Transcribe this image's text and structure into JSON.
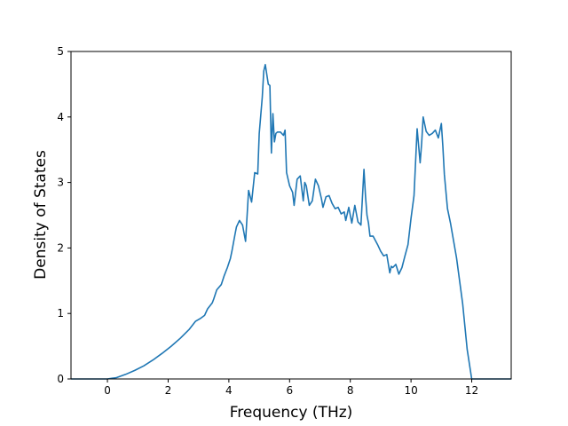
{
  "chart_data": {
    "type": "line",
    "title": "",
    "xlabel": "Frequency (THz)",
    "ylabel": "Density of States",
    "xlim": [
      -1.2,
      13.3
    ],
    "ylim": [
      0,
      5
    ],
    "grid": false,
    "legend": "none",
    "line_color": "#1f77b4",
    "xticks": [
      0,
      2,
      4,
      6,
      8,
      10,
      12
    ],
    "yticks": [
      0,
      1,
      2,
      3,
      4,
      5
    ],
    "xtick_labels": [
      "0",
      "2",
      "4",
      "6",
      "8",
      "10",
      "12"
    ],
    "ytick_labels": [
      "0",
      "1",
      "2",
      "3",
      "4",
      "5"
    ],
    "series": [
      {
        "x": [
          -1.2,
          -0.6,
          0.0,
          0.3,
          0.6,
          0.9,
          1.2,
          1.5,
          1.8,
          2.1,
          2.4,
          2.7,
          2.9,
          3.05,
          3.2,
          3.3,
          3.45,
          3.5,
          3.6,
          3.75,
          3.85,
          3.95,
          4.05,
          4.1,
          4.2,
          4.25,
          4.35,
          4.45,
          4.55,
          4.65,
          4.75,
          4.85,
          4.95,
          5.0,
          5.1,
          5.15,
          5.2,
          5.3,
          5.35,
          5.4,
          5.45,
          5.5,
          5.55,
          5.6,
          5.7,
          5.8,
          5.85,
          5.9,
          6.0,
          6.1,
          6.15,
          6.25,
          6.35,
          6.45,
          6.5,
          6.55,
          6.65,
          6.75,
          6.85,
          6.95,
          7.05,
          7.1,
          7.2,
          7.3,
          7.4,
          7.5,
          7.6,
          7.7,
          7.8,
          7.85,
          7.95,
          8.05,
          8.15,
          8.25,
          8.35,
          8.45,
          8.5,
          8.55,
          8.6,
          8.65,
          8.75,
          8.9,
          9.0,
          9.1,
          9.2,
          9.3,
          9.35,
          9.4,
          9.5,
          9.6,
          9.7,
          9.8,
          9.9,
          10.0,
          10.1,
          10.2,
          10.3,
          10.35,
          10.4,
          10.5,
          10.55,
          10.6,
          10.7,
          10.8,
          10.9,
          11.0,
          11.05,
          11.1,
          11.2,
          11.3,
          11.5,
          11.7,
          11.85,
          12.0,
          12.05,
          12.5,
          13.3
        ],
        "y": [
          0,
          0,
          0,
          0.02,
          0.07,
          0.13,
          0.2,
          0.29,
          0.39,
          0.5,
          0.62,
          0.76,
          0.88,
          0.92,
          0.97,
          1.07,
          1.16,
          1.22,
          1.36,
          1.44,
          1.58,
          1.7,
          1.84,
          1.95,
          2.2,
          2.32,
          2.42,
          2.35,
          2.1,
          2.88,
          2.7,
          3.15,
          3.13,
          3.75,
          4.3,
          4.7,
          4.8,
          4.5,
          4.48,
          3.45,
          4.05,
          3.62,
          3.75,
          3.77,
          3.77,
          3.72,
          3.8,
          3.15,
          2.95,
          2.85,
          2.65,
          3.05,
          3.1,
          2.72,
          3.0,
          2.95,
          2.65,
          2.72,
          3.05,
          2.95,
          2.75,
          2.62,
          2.78,
          2.8,
          2.68,
          2.6,
          2.62,
          2.52,
          2.55,
          2.42,
          2.62,
          2.38,
          2.65,
          2.4,
          2.35,
          3.2,
          2.8,
          2.5,
          2.38,
          2.18,
          2.18,
          2.05,
          1.95,
          1.88,
          1.9,
          1.62,
          1.72,
          1.7,
          1.75,
          1.6,
          1.7,
          1.88,
          2.05,
          2.45,
          2.8,
          3.82,
          3.3,
          3.6,
          4.0,
          3.78,
          3.75,
          3.72,
          3.75,
          3.8,
          3.68,
          3.9,
          3.55,
          3.12,
          2.6,
          2.38,
          1.85,
          1.15,
          0.45,
          0.0,
          0.0,
          0.0,
          0.0
        ]
      }
    ]
  }
}
